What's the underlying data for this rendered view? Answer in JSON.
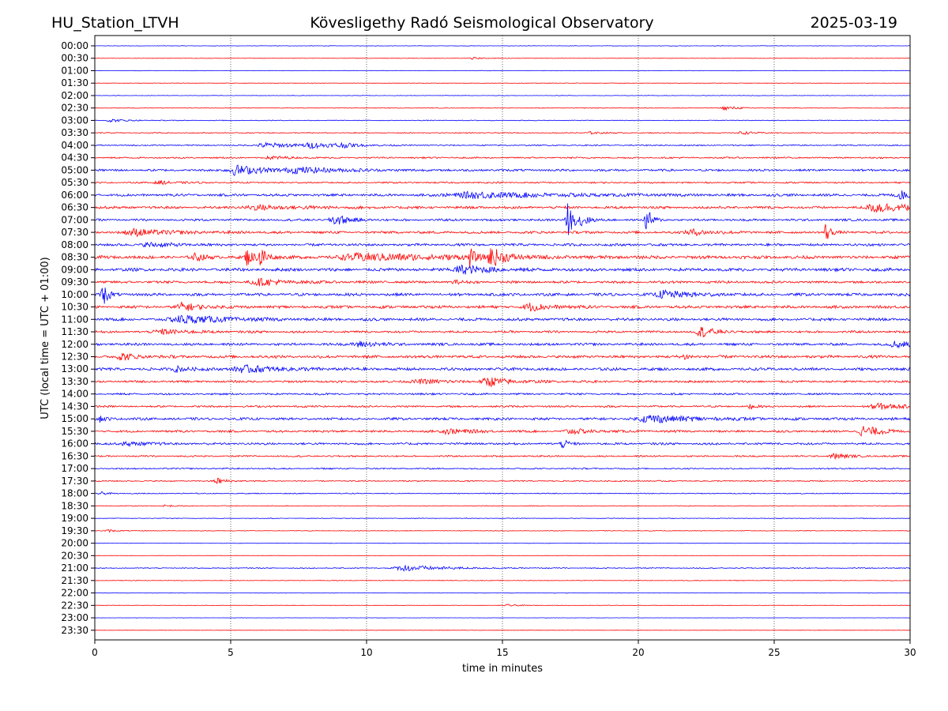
{
  "header": {
    "station": "HU_Station_LTVH",
    "observatory": "Kövesligethy Radó Seismological Observatory",
    "date": "2025-03-19"
  },
  "chart_data": {
    "type": "line",
    "title": "Kövesligethy Radó Seismological Observatory",
    "xlabel": "time in minutes",
    "ylabel": "UTC (local time = UTC + 01:00)",
    "xlim": [
      0,
      30
    ],
    "x_ticks": [
      0,
      5,
      10,
      15,
      20,
      25,
      30
    ],
    "grid": "vertical dotted lines at 5-minute ticks",
    "colors": {
      "even_rows": "#0000ff",
      "odd_rows": "#ff0000",
      "frame": "#000000"
    },
    "rows": [
      {
        "label": "00:00",
        "noise": 0.3,
        "events": []
      },
      {
        "label": "00:30",
        "noise": 0.3,
        "events": [
          {
            "t": 13.9,
            "amp": 1.5,
            "dur": 0.3
          }
        ]
      },
      {
        "label": "01:00",
        "noise": 0.3,
        "events": []
      },
      {
        "label": "01:30",
        "noise": 0.3,
        "events": []
      },
      {
        "label": "02:00",
        "noise": 0.3,
        "events": []
      },
      {
        "label": "02:30",
        "noise": 0.4,
        "events": [
          {
            "t": 23.2,
            "amp": 2.5,
            "dur": 0.4
          }
        ]
      },
      {
        "label": "03:00",
        "noise": 0.5,
        "events": [
          {
            "t": 0.6,
            "amp": 1.8,
            "dur": 0.5
          }
        ]
      },
      {
        "label": "03:30",
        "noise": 0.6,
        "events": [
          {
            "t": 18.2,
            "amp": 1.5,
            "dur": 0.4
          },
          {
            "t": 23.8,
            "amp": 1.8,
            "dur": 0.4
          }
        ]
      },
      {
        "label": "04:00",
        "noise": 0.8,
        "events": [
          {
            "t": 6.3,
            "amp": 3.5,
            "dur": 0.8
          },
          {
            "t": 8.0,
            "amp": 3.0,
            "dur": 0.8
          },
          {
            "t": 9.0,
            "amp": 2.5,
            "dur": 0.4
          }
        ]
      },
      {
        "label": "04:30",
        "noise": 1.0,
        "events": [
          {
            "t": 6.5,
            "amp": 2.0,
            "dur": 0.5
          }
        ]
      },
      {
        "label": "05:00",
        "noise": 1.4,
        "events": [
          {
            "t": 5.2,
            "amp": 6.5,
            "dur": 0.8
          },
          {
            "t": 7.5,
            "amp": 3.0,
            "dur": 1.5
          }
        ]
      },
      {
        "label": "05:30",
        "noise": 1.0,
        "events": [
          {
            "t": 2.4,
            "amp": 2.0,
            "dur": 0.5
          }
        ]
      },
      {
        "label": "06:00",
        "noise": 1.6,
        "events": [
          {
            "t": 14.0,
            "amp": 3.5,
            "dur": 2.5
          },
          {
            "t": 29.7,
            "amp": 5.0,
            "dur": 0.6
          }
        ]
      },
      {
        "label": "06:30",
        "noise": 1.6,
        "events": [
          {
            "t": 28.8,
            "amp": 6.5,
            "dur": 0.9
          },
          {
            "t": 6.0,
            "amp": 2.5,
            "dur": 1.5
          }
        ]
      },
      {
        "label": "07:00",
        "noise": 1.4,
        "events": [
          {
            "t": 8.8,
            "amp": 7.5,
            "dur": 0.4
          },
          {
            "t": 17.4,
            "amp": 22.0,
            "dur": 0.18
          },
          {
            "t": 17.9,
            "amp": 11.0,
            "dur": 0.15
          },
          {
            "t": 20.3,
            "amp": 16.0,
            "dur": 0.15
          }
        ]
      },
      {
        "label": "07:30",
        "noise": 1.6,
        "events": [
          {
            "t": 1.5,
            "amp": 4.0,
            "dur": 1.0
          },
          {
            "t": 22.0,
            "amp": 3.5,
            "dur": 0.6
          },
          {
            "t": 26.9,
            "amp": 14.0,
            "dur": 0.12
          }
        ]
      },
      {
        "label": "08:00",
        "noise": 1.6,
        "events": [
          {
            "t": 2.0,
            "amp": 2.5,
            "dur": 0.8
          }
        ]
      },
      {
        "label": "08:30",
        "noise": 2.0,
        "events": [
          {
            "t": 3.7,
            "amp": 4.0,
            "dur": 0.3
          },
          {
            "t": 5.6,
            "amp": 10.0,
            "dur": 0.2
          },
          {
            "t": 6.1,
            "amp": 14.0,
            "dur": 0.2
          },
          {
            "t": 10.0,
            "amp": 4.5,
            "dur": 2.5
          },
          {
            "t": 13.8,
            "amp": 12.0,
            "dur": 0.15
          },
          {
            "t": 14.6,
            "amp": 11.0,
            "dur": 0.4
          }
        ]
      },
      {
        "label": "09:00",
        "noise": 2.0,
        "events": [
          {
            "t": 13.5,
            "amp": 5.5,
            "dur": 0.8
          }
        ]
      },
      {
        "label": "09:30",
        "noise": 1.6,
        "events": [
          {
            "t": 6.0,
            "amp": 4.0,
            "dur": 0.8
          },
          {
            "t": 13.2,
            "amp": 2.5,
            "dur": 0.2
          }
        ]
      },
      {
        "label": "10:00",
        "noise": 1.8,
        "events": [
          {
            "t": 0.3,
            "amp": 16.0,
            "dur": 0.15
          },
          {
            "t": 21.0,
            "amp": 5.0,
            "dur": 0.8
          }
        ]
      },
      {
        "label": "10:30",
        "noise": 1.8,
        "events": [
          {
            "t": 3.2,
            "amp": 5.0,
            "dur": 0.5
          },
          {
            "t": 16.0,
            "amp": 4.5,
            "dur": 0.6
          }
        ]
      },
      {
        "label": "11:00",
        "noise": 1.8,
        "events": [
          {
            "t": 3.3,
            "amp": 5.0,
            "dur": 1.2
          }
        ]
      },
      {
        "label": "11:30",
        "noise": 1.4,
        "events": [
          {
            "t": 22.3,
            "amp": 6.5,
            "dur": 0.4
          },
          {
            "t": 2.5,
            "amp": 3.0,
            "dur": 0.8
          }
        ]
      },
      {
        "label": "12:00",
        "noise": 1.6,
        "events": [
          {
            "t": 9.7,
            "amp": 4.0,
            "dur": 0.5
          },
          {
            "t": 29.5,
            "amp": 4.0,
            "dur": 0.6
          }
        ]
      },
      {
        "label": "12:30",
        "noise": 1.8,
        "events": [
          {
            "t": 1.0,
            "amp": 4.5,
            "dur": 0.4
          },
          {
            "t": 21.7,
            "amp": 3.5,
            "dur": 0.2
          }
        ]
      },
      {
        "label": "13:00",
        "noise": 1.8,
        "events": [
          {
            "t": 3.0,
            "amp": 4.0,
            "dur": 0.3
          },
          {
            "t": 5.5,
            "amp": 4.0,
            "dur": 1.2
          }
        ]
      },
      {
        "label": "13:30",
        "noise": 1.4,
        "events": [
          {
            "t": 14.5,
            "amp": 5.5,
            "dur": 0.6
          },
          {
            "t": 12.0,
            "amp": 2.5,
            "dur": 1.0
          }
        ]
      },
      {
        "label": "14:00",
        "noise": 1.2,
        "events": []
      },
      {
        "label": "14:30",
        "noise": 1.2,
        "events": [
          {
            "t": 28.8,
            "amp": 4.5,
            "dur": 0.6
          },
          {
            "t": 24.1,
            "amp": 3.0,
            "dur": 0.15
          }
        ]
      },
      {
        "label": "15:00",
        "noise": 1.6,
        "events": [
          {
            "t": 20.5,
            "amp": 5.0,
            "dur": 1.2
          },
          {
            "t": 0.2,
            "amp": 3.5,
            "dur": 0.2
          }
        ]
      },
      {
        "label": "15:30",
        "noise": 1.4,
        "events": [
          {
            "t": 28.3,
            "amp": 7.0,
            "dur": 0.5
          },
          {
            "t": 13.0,
            "amp": 3.5,
            "dur": 0.6
          },
          {
            "t": 17.5,
            "amp": 3.0,
            "dur": 0.6
          }
        ]
      },
      {
        "label": "16:00",
        "noise": 1.4,
        "events": [
          {
            "t": 17.2,
            "amp": 5.0,
            "dur": 0.2
          },
          {
            "t": 1.2,
            "amp": 2.5,
            "dur": 0.6
          }
        ]
      },
      {
        "label": "16:30",
        "noise": 1.0,
        "events": [
          {
            "t": 27.2,
            "amp": 3.5,
            "dur": 0.4
          }
        ]
      },
      {
        "label": "17:00",
        "noise": 0.9,
        "events": []
      },
      {
        "label": "17:30",
        "noise": 0.8,
        "events": [
          {
            "t": 4.5,
            "amp": 4.0,
            "dur": 0.3
          }
        ]
      },
      {
        "label": "18:00",
        "noise": 0.6,
        "events": [
          {
            "t": 0.2,
            "amp": 2.0,
            "dur": 0.2
          }
        ]
      },
      {
        "label": "18:30",
        "noise": 0.5,
        "events": [
          {
            "t": 2.6,
            "amp": 2.0,
            "dur": 0.15
          }
        ]
      },
      {
        "label": "19:00",
        "noise": 0.4,
        "events": []
      },
      {
        "label": "19:30",
        "noise": 0.4,
        "events": [
          {
            "t": 0.5,
            "amp": 1.5,
            "dur": 0.3
          }
        ]
      },
      {
        "label": "20:00",
        "noise": 0.3,
        "events": []
      },
      {
        "label": "20:30",
        "noise": 0.3,
        "events": []
      },
      {
        "label": "21:00",
        "noise": 0.6,
        "events": [
          {
            "t": 11.5,
            "amp": 3.5,
            "dur": 1.2
          }
        ]
      },
      {
        "label": "21:30",
        "noise": 0.4,
        "events": []
      },
      {
        "label": "22:00",
        "noise": 0.3,
        "events": []
      },
      {
        "label": "22:30",
        "noise": 0.3,
        "events": [
          {
            "t": 15.2,
            "amp": 1.2,
            "dur": 0.4
          }
        ]
      },
      {
        "label": "23:00",
        "noise": 0.2,
        "events": []
      },
      {
        "label": "23:30",
        "noise": 0.2,
        "events": []
      }
    ]
  }
}
